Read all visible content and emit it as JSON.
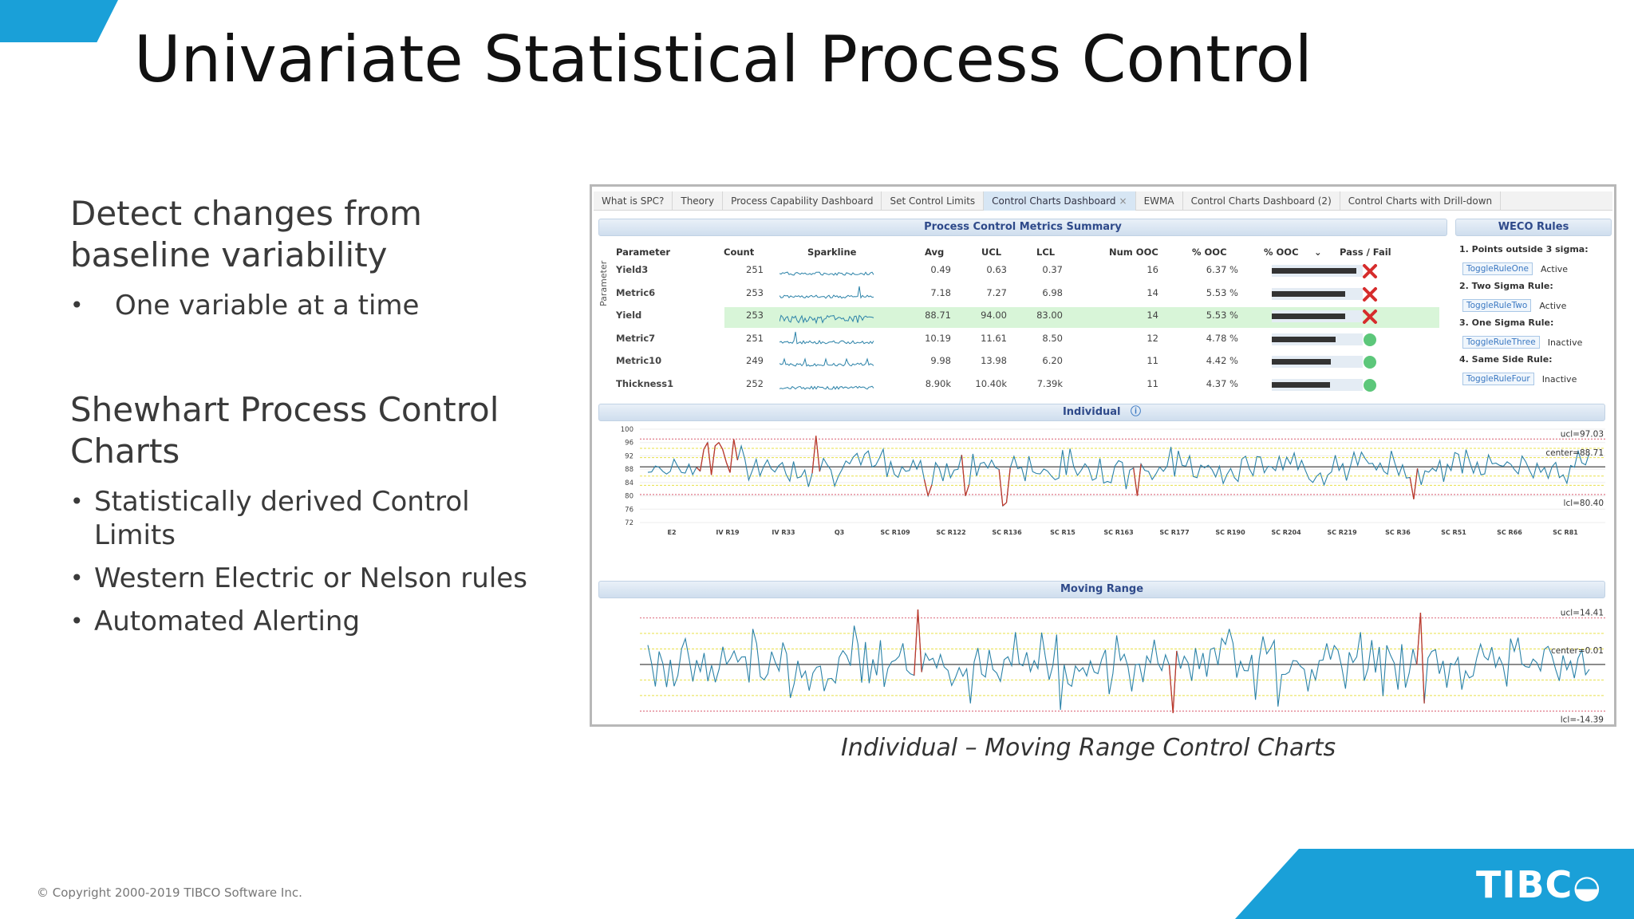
{
  "slide": {
    "title": "Univariate Statistical Process Control",
    "caption": "Individual – Moving Range Control Charts",
    "copyright": "© Copyright 2000-2019 TIBCO Software Inc.",
    "logo": "TIBC",
    "accent_color": "#1aa0d8"
  },
  "left": {
    "section1": {
      "heading": "Detect changes from baseline variability",
      "bullets": [
        "One variable at a time"
      ]
    },
    "section2": {
      "heading": "Shewhart Process Control Charts",
      "bullets": [
        "Statistically derived Control Limits",
        "Western Electric or Nelson rules",
        "Automated Alerting"
      ]
    }
  },
  "app": {
    "tabs": [
      {
        "label": "What is SPC?",
        "active": false
      },
      {
        "label": "Theory",
        "active": false
      },
      {
        "label": "Process Capability Dashboard",
        "active": false
      },
      {
        "label": "Set Control Limits",
        "active": false
      },
      {
        "label": "Control Charts Dashboard",
        "active": true
      },
      {
        "label": "EWMA",
        "active": false
      },
      {
        "label": "Control Charts Dashboard (2)",
        "active": false
      },
      {
        "label": "Control Charts with Drill-down",
        "active": false
      }
    ],
    "metrics_title": "Process Control Metrics Summary",
    "axis_label": "Parameter",
    "columns": [
      "Parameter",
      "Count",
      "Sparkline",
      "Avg",
      "UCL",
      "LCL",
      "Num OOC",
      "% OOC",
      "% OOC",
      "Pass / Fail"
    ],
    "rows": [
      {
        "parameter": "Yield3",
        "count": "251",
        "avg": "0.49",
        "ucl": "0.63",
        "lcl": "0.37",
        "num_ooc": "16",
        "pct_ooc": "6.37 %",
        "pct_ooc_value": 6.37,
        "pass": false,
        "highlight": false
      },
      {
        "parameter": "Metric6",
        "count": "253",
        "avg": "7.18",
        "ucl": "7.27",
        "lcl": "6.98",
        "num_ooc": "14",
        "pct_ooc": "5.53 %",
        "pct_ooc_value": 5.53,
        "pass": false,
        "highlight": false
      },
      {
        "parameter": "Yield",
        "count": "253",
        "avg": "88.71",
        "ucl": "94.00",
        "lcl": "83.00",
        "num_ooc": "14",
        "pct_ooc": "5.53 %",
        "pct_ooc_value": 5.53,
        "pass": false,
        "highlight": true
      },
      {
        "parameter": "Metric7",
        "count": "251",
        "avg": "10.19",
        "ucl": "11.61",
        "lcl": "8.50",
        "num_ooc": "12",
        "pct_ooc": "4.78 %",
        "pct_ooc_value": 4.78,
        "pass": true,
        "highlight": false
      },
      {
        "parameter": "Metric10",
        "count": "249",
        "avg": "9.98",
        "ucl": "13.98",
        "lcl": "6.20",
        "num_ooc": "11",
        "pct_ooc": "4.42 %",
        "pct_ooc_value": 4.42,
        "pass": true,
        "highlight": false
      },
      {
        "parameter": "Thickness1",
        "count": "252",
        "avg": "8.90k",
        "ucl": "10.40k",
        "lcl": "7.39k",
        "num_ooc": "11",
        "pct_ooc": "4.37 %",
        "pct_ooc_value": 4.37,
        "pass": true,
        "highlight": false
      }
    ],
    "weco": {
      "title": "WECO Rules",
      "rules": [
        {
          "rule": "1. Points outside 3 sigma:",
          "button": "ToggleRuleOne",
          "status": "Active"
        },
        {
          "rule": "2. Two Sigma Rule:",
          "button": "ToggleRuleTwo",
          "status": "Active"
        },
        {
          "rule": "3. One Sigma Rule:",
          "button": "ToggleRuleThree",
          "status": "Inactive"
        },
        {
          "rule": "4. Same Side Rule:",
          "button": "ToggleRuleFour",
          "status": "Inactive"
        }
      ]
    },
    "colors": {
      "series": "#2b82a8",
      "ooc": "#c0392b",
      "ucl_lcl": "#e07a8a",
      "sigma": "#e8e04a",
      "center": "#333333",
      "pass": "#5cc77a",
      "fail": "#d62c2c"
    }
  },
  "chart_data": [
    {
      "type": "line",
      "title": "Individual",
      "ylim": [
        72,
        100
      ],
      "yticks": [
        "100",
        "96",
        "92",
        "88",
        "84",
        "80",
        "76",
        "72"
      ],
      "x_tick_labels": [
        "E2",
        "IV R19",
        "IV R33",
        "Q3",
        "SC R109",
        "SC R122",
        "SC R136",
        "SC R15",
        "SC R163",
        "SC R177",
        "SC R190",
        "SC R204",
        "SC R219",
        "SC R36",
        "SC R51",
        "SC R66",
        "SC R81"
      ],
      "ucl": 97.03,
      "center": 88.71,
      "lcl": 80.4,
      "ucl_label": "ucl=97.03",
      "center_label": "center=88.71",
      "lcl_label": "lcl=80.40",
      "n_points": 253,
      "seed": 7
    },
    {
      "type": "line",
      "title": "Moving Range",
      "ylim": [
        -18,
        18
      ],
      "ucl": 14.41,
      "center": 0.01,
      "lcl": -14.39,
      "ucl_label": "ucl=14.41",
      "center_label": "center=0.01",
      "lcl_label": "lcl=-14.39",
      "n_points": 252,
      "seed": 13
    }
  ]
}
